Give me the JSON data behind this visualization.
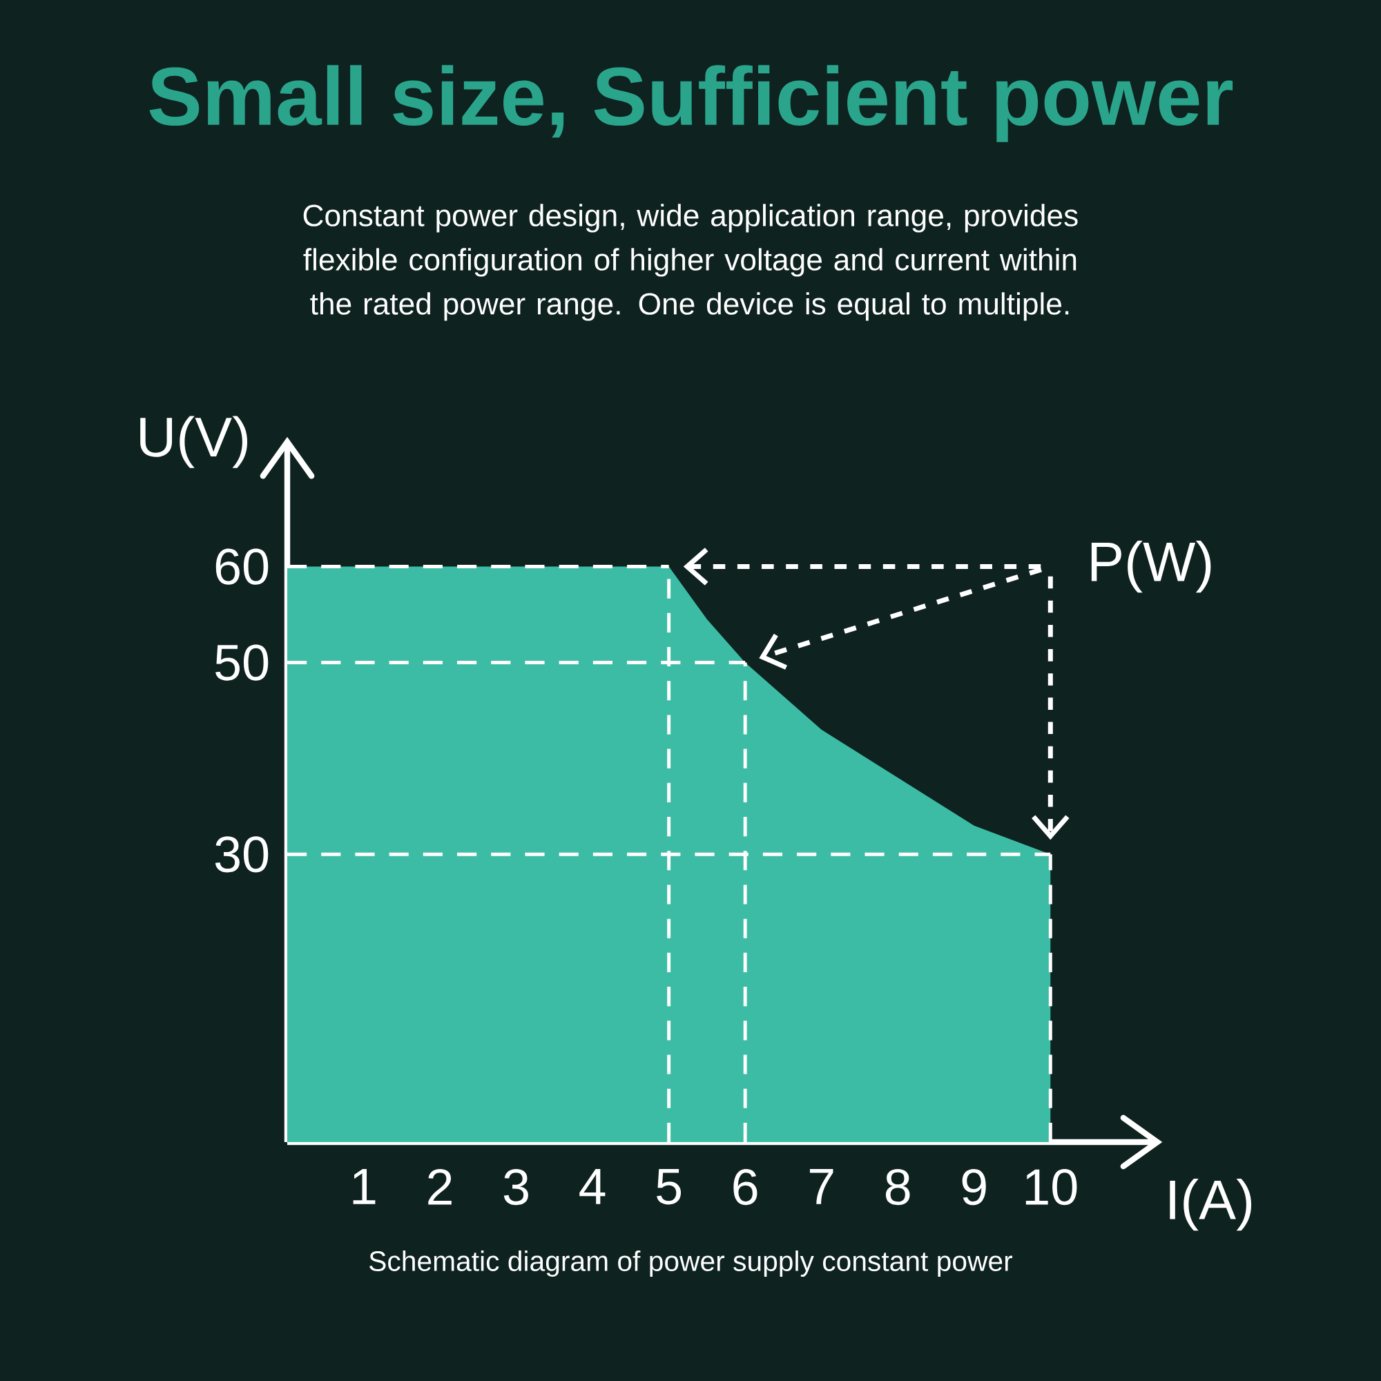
{
  "chart_data": {
    "type": "area",
    "title": "Small size, Sufficient power",
    "subtitle": "Constant power design, wide application range, provides flexible configuration of higher voltage and current within the rated power range. One device is equal to multiple.",
    "xlabel": "I(A)",
    "ylabel": "U(V)",
    "x": [
      0,
      5,
      5.5,
      6,
      7,
      8,
      9,
      10
    ],
    "values": [
      60,
      60,
      54.5,
      50,
      43,
      38,
      33,
      30
    ],
    "color": "#3dbca5",
    "xlim": [
      0,
      11.4
    ],
    "ylim": [
      0,
      73
    ],
    "xticks": [
      1,
      2,
      3,
      4,
      5,
      6,
      7,
      8,
      9,
      10
    ],
    "yticks": [
      30,
      50,
      60
    ],
    "grid": false,
    "ref_lines": [
      {
        "axis": "y",
        "value": 60,
        "color": "#ffffff",
        "line_style": "dashed"
      },
      {
        "axis": "y",
        "value": 50,
        "color": "#ffffff",
        "line_style": "dashed"
      },
      {
        "axis": "y",
        "value": 30,
        "color": "#ffffff",
        "line_style": "dashed"
      },
      {
        "axis": "x",
        "value": 5,
        "color": "#ffffff",
        "line_style": "dashed"
      },
      {
        "axis": "x",
        "value": 6,
        "color": "#ffffff",
        "line_style": "dashed"
      },
      {
        "axis": "x",
        "value": 10,
        "color": "#ffffff",
        "line_style": "dashed"
      }
    ],
    "annotations": [
      "P(W)",
      "Schematic diagram of power supply constant power"
    ]
  }
}
